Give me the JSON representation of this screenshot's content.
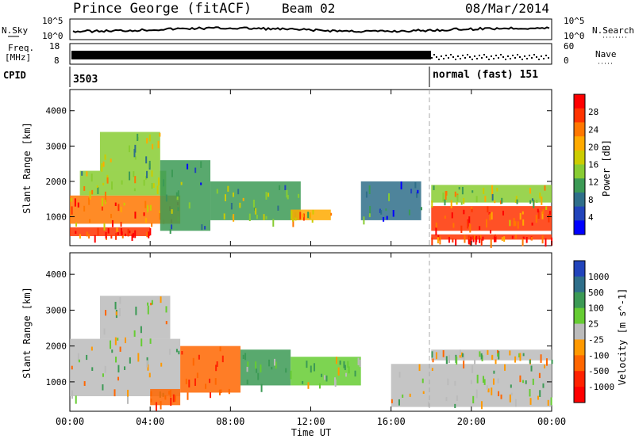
{
  "header": {
    "station": "Prince George (fitACF)",
    "beam": "Beam 02",
    "date": "08/Mar/2014"
  },
  "top_panels": {
    "nsky_label": "N.Sky",
    "nsky_ticks": [
      "10^5",
      "10^0"
    ],
    "nsearch_label": "N.Search",
    "nsearch_ticks": [
      "10^5",
      "10^0"
    ],
    "freq_label_line1": "Freq.",
    "freq_label_line2": "[MHz]",
    "freq_ticks": [
      "18",
      "8"
    ],
    "nave_label": "Nave",
    "nave_ticks": [
      "60",
      "0"
    ],
    "cpid_label": "CPID",
    "cpid_left": "3503",
    "cpid_right": "normal (fast) 151"
  },
  "power_panel": {
    "ylabel": "Slant Range [km]",
    "yticks": [
      "4000",
      "3000",
      "2000",
      "1000"
    ],
    "colorbar_label": "Power [dB]",
    "colorbar_ticks": [
      "28",
      "24",
      "20",
      "16",
      "12",
      "8",
      "4"
    ],
    "colors": [
      "#ff0000",
      "#ff3300",
      "#ff7700",
      "#ffaa00",
      "#cccc00",
      "#88cc33",
      "#3c9a55",
      "#2f6f8a",
      "#2244bb",
      "#0000ff"
    ]
  },
  "velocity_panel": {
    "ylabel": "Slant Range [km]",
    "yticks": [
      "4000",
      "3000",
      "2000",
      "1000"
    ],
    "colorbar_label": "Velocity [m s^-1]",
    "colorbar_ticks": [
      "1000",
      "500",
      "100",
      "25",
      "-25",
      "-100",
      "-500",
      "-1000"
    ],
    "colors": [
      "#2244bb",
      "#2f6f8a",
      "#3c9a55",
      "#66cc33",
      "#bbbbbb",
      "#ff9900",
      "#ff6600",
      "#ff2200",
      "#ff0000"
    ]
  },
  "xaxis": {
    "label": "Time UT",
    "ticks": [
      "00:00",
      "04:00",
      "08:00",
      "12:00",
      "16:00",
      "20:00",
      "00:00"
    ]
  },
  "chart_data": [
    {
      "type": "heatmap",
      "title": "Prince George (fitACF)  Beam 02  08/Mar/2014",
      "xlabel": "Time UT",
      "ylabel": "Slant Range [km]",
      "xlim": [
        0,
        24
      ],
      "ylim": [
        180,
        4600
      ],
      "colorbar": "Power [dB]",
      "colorbar_ticks": [
        4,
        8,
        12,
        16,
        20,
        24,
        28
      ],
      "regions": [
        {
          "t0": 0.0,
          "t1": 4.0,
          "r0": 450,
          "r1": 700,
          "value": 28
        },
        {
          "t0": 0.0,
          "t1": 5.5,
          "r0": 800,
          "r1": 1600,
          "value": 24
        },
        {
          "t0": 0.5,
          "t1": 4.8,
          "r0": 1600,
          "r1": 2300,
          "value": 16
        },
        {
          "t0": 1.5,
          "t1": 4.5,
          "r0": 2300,
          "r1": 3400,
          "value": 14
        },
        {
          "t0": 4.5,
          "t1": 7.0,
          "r0": 600,
          "r1": 2600,
          "value": 10
        },
        {
          "t0": 7.0,
          "t1": 11.5,
          "r0": 900,
          "r1": 2000,
          "value": 12
        },
        {
          "t0": 11.0,
          "t1": 13.0,
          "r0": 900,
          "r1": 1200,
          "value": 20
        },
        {
          "t0": 14.5,
          "t1": 17.5,
          "r0": 900,
          "r1": 2000,
          "value": 8
        },
        {
          "t0": 18.0,
          "t1": 24.0,
          "r0": 350,
          "r1": 500,
          "value": 28
        },
        {
          "t0": 18.0,
          "t1": 24.0,
          "r0": 600,
          "r1": 1300,
          "value": 26
        },
        {
          "t0": 18.0,
          "t1": 24.0,
          "r0": 1400,
          "r1": 1900,
          "value": 16
        }
      ]
    },
    {
      "type": "heatmap",
      "title": "",
      "xlabel": "Time UT",
      "ylabel": "Slant Range [km]",
      "xlim": [
        0,
        24
      ],
      "ylim": [
        180,
        4600
      ],
      "colorbar": "Velocity [m s^-1]",
      "colorbar_ticks": [
        -1000,
        -500,
        -100,
        -25,
        25,
        100,
        500,
        1000
      ],
      "regions": [
        {
          "t0": 0.0,
          "t1": 5.5,
          "r0": 600,
          "r1": 2200,
          "value": 0
        },
        {
          "t0": 1.5,
          "t1": 5.0,
          "r0": 2200,
          "r1": 3400,
          "value": 0
        },
        {
          "t0": 4.0,
          "t1": 5.5,
          "r0": 350,
          "r1": 800,
          "value": -400
        },
        {
          "t0": 5.5,
          "t1": 8.5,
          "r0": 700,
          "r1": 2000,
          "value": -500
        },
        {
          "t0": 8.5,
          "t1": 11.0,
          "r0": 900,
          "r1": 1900,
          "value": 150
        },
        {
          "t0": 11.0,
          "t1": 14.5,
          "r0": 900,
          "r1": 1700,
          "value": 80
        },
        {
          "t0": 16.0,
          "t1": 24.0,
          "r0": 300,
          "r1": 1500,
          "value": 0
        },
        {
          "t0": 18.0,
          "t1": 24.0,
          "r0": 1600,
          "r1": 1900,
          "value": 0
        }
      ]
    }
  ]
}
